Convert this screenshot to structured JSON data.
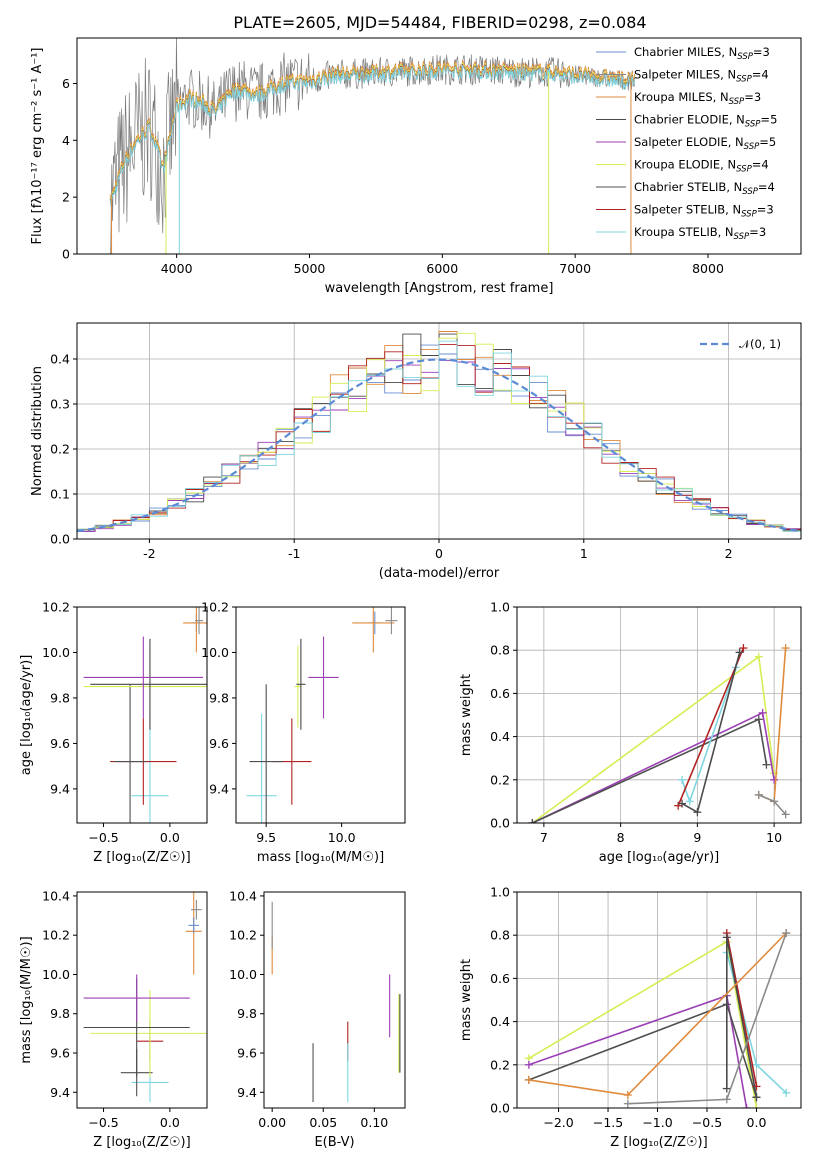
{
  "figure": {
    "title": "PLATE=2605, MJD=54484, FIBERID=0298, z=0.084"
  },
  "series_styles": [
    {
      "name": "Chabrier MILES",
      "nssp": "3",
      "color": "#6a8fd0"
    },
    {
      "name": "Salpeter MILES",
      "nssp": "4",
      "color": "#8a8a8a"
    },
    {
      "name": "Kroupa MILES",
      "nssp": "3",
      "color": "#e08a3c"
    },
    {
      "name": "Chabrier ELODIE",
      "nssp": "5",
      "color": "#4a4a4a"
    },
    {
      "name": "Salpeter ELODIE",
      "nssp": "5",
      "color": "#9b3fb5"
    },
    {
      "name": "Kroupa ELODIE",
      "nssp": "4",
      "color": "#d4ee55"
    },
    {
      "name": "Chabrier STELIB",
      "nssp": "4",
      "color": "#505050"
    },
    {
      "name": "Salpeter STELIB",
      "nssp": "3",
      "color": "#b22222"
    },
    {
      "name": "Kroupa STELIB",
      "nssp": "3",
      "color": "#7fd6e0"
    }
  ],
  "chart_data": [
    {
      "id": "spectrum",
      "type": "line",
      "xlabel": "wavelength [Angstrom, rest frame]",
      "ylabel": "Flux [fλ10⁻¹⁷ erg cm⁻² s⁻¹ A⁻¹]",
      "xlim": [
        3250,
        8700
      ],
      "ylim": [
        0,
        7.6
      ],
      "xticks": [
        4000,
        5000,
        6000,
        7000,
        8000
      ],
      "yticks": [
        0,
        2,
        4,
        6
      ],
      "data_curve": {
        "x": [
          3500,
          3600,
          3700,
          3800,
          3900,
          4000,
          4100,
          4200,
          4300,
          4400,
          4500,
          4600,
          4800,
          5000,
          5200,
          5400,
          5600,
          5800,
          6000,
          6200,
          6400,
          6600,
          6800,
          7000,
          7200,
          7400
        ],
        "y": [
          1.8,
          3.2,
          4.0,
          4.5,
          3.0,
          5.2,
          5.5,
          5.3,
          5.0,
          5.7,
          5.8,
          5.6,
          6.0,
          6.1,
          6.3,
          6.35,
          6.4,
          6.45,
          6.5,
          6.5,
          6.45,
          6.4,
          6.4,
          6.3,
          6.2,
          6.1
        ]
      },
      "legend": "upper right"
    },
    {
      "id": "residuals",
      "type": "histogram",
      "xlabel": "(data-model)/error",
      "ylabel": "Normed distribution",
      "xlim": [
        -2.5,
        2.5
      ],
      "ylim": [
        0,
        0.48
      ],
      "xticks": [
        -2,
        -1,
        0,
        1,
        2
      ],
      "yticks": [
        0.0,
        0.1,
        0.2,
        0.3,
        0.4
      ],
      "reference": {
        "name": "𝒩(0, 1)",
        "mean": 0,
        "sigma": 1
      },
      "grid": true
    },
    {
      "id": "z-age",
      "type": "errorbar",
      "xlabel": "Z [log₁₀(Z/Z☉)]",
      "ylabel": "age  [log₁₀(age/yr)]",
      "xlim": [
        -0.7,
        0.28
      ],
      "ylim": [
        9.25,
        10.2
      ],
      "xticks": [
        -0.5,
        0.0
      ],
      "yticks": [
        9.4,
        9.6,
        9.8,
        10.0,
        10.2
      ],
      "points": [
        {
          "series": 8,
          "x": -0.15,
          "y": 9.37,
          "xerr": 0.14,
          "yerr": 0.36
        },
        {
          "series": 7,
          "x": -0.2,
          "y": 9.52,
          "xerr": 0.25,
          "yerr": 0.19
        },
        {
          "series": 6,
          "x": -0.3,
          "y": 9.52,
          "xerr": 0.12,
          "yerr": 0.34
        },
        {
          "series": 5,
          "x": -0.15,
          "y": 9.85,
          "xerr": 0.5,
          "yerr": 0.18
        },
        {
          "series": 3,
          "x": -0.15,
          "y": 9.86,
          "xerr": 0.45,
          "yerr": 0.2
        },
        {
          "series": 4,
          "x": -0.2,
          "y": 9.89,
          "xerr": 0.45,
          "yerr": 0.18
        },
        {
          "series": 0,
          "x": 0.2,
          "y": 10.13,
          "xerr": 0.04,
          "yerr": 0.04
        },
        {
          "series": 2,
          "x": 0.2,
          "y": 10.13,
          "xerr": 0.1,
          "yerr": 0.13
        },
        {
          "series": 1,
          "x": 0.22,
          "y": 10.14,
          "xerr": 0.03,
          "yerr": 0.06
        }
      ]
    },
    {
      "id": "mass-age",
      "type": "errorbar",
      "xlabel": "mass [log₁₀(M/M☉)]",
      "ylabel": "",
      "xlim": [
        9.3,
        10.42
      ],
      "ylim": [
        9.25,
        10.2
      ],
      "xticks": [
        9.5,
        10.0
      ],
      "yticks": [
        9.4,
        9.6,
        9.8,
        10.0,
        10.2
      ],
      "points": [
        {
          "series": 8,
          "x": 9.47,
          "y": 9.37,
          "xerr": 0.1,
          "yerr": 0.36
        },
        {
          "series": 7,
          "x": 9.67,
          "y": 9.52,
          "xerr": 0.13,
          "yerr": 0.19
        },
        {
          "series": 6,
          "x": 9.5,
          "y": 9.52,
          "xerr": 0.11,
          "yerr": 0.34
        },
        {
          "series": 5,
          "x": 9.71,
          "y": 9.85,
          "xerr": 0.02,
          "yerr": 0.18
        },
        {
          "series": 3,
          "x": 9.73,
          "y": 9.86,
          "xerr": 0.03,
          "yerr": 0.2
        },
        {
          "series": 4,
          "x": 9.88,
          "y": 9.89,
          "xerr": 0.1,
          "yerr": 0.18
        },
        {
          "series": 0,
          "x": 10.22,
          "y": 10.13,
          "xerr": 0.04,
          "yerr": 0.05
        },
        {
          "series": 2,
          "x": 10.21,
          "y": 10.13,
          "xerr": 0.14,
          "yerr": 0.13
        },
        {
          "series": 1,
          "x": 10.33,
          "y": 10.14,
          "xerr": 0.04,
          "yerr": 0.06
        }
      ]
    },
    {
      "id": "age-weight",
      "type": "line",
      "xlabel": "age  [log₁₀(age/yr)]",
      "ylabel": "mass weight",
      "xlim": [
        6.65,
        10.35
      ],
      "ylim": [
        0,
        1.0
      ],
      "xticks": [
        7,
        8,
        9,
        10
      ],
      "yticks": [
        0.0,
        0.2,
        0.4,
        0.6,
        0.8,
        1.0
      ],
      "grid": true,
      "series": [
        {
          "series": 5,
          "x": [
            6.85,
            9.8,
            10.0
          ],
          "y": [
            0.0,
            0.77,
            0.23
          ]
        },
        {
          "series": 4,
          "x": [
            6.85,
            9.85,
            10.0
          ],
          "y": [
            0.0,
            0.51,
            0.2
          ]
        },
        {
          "series": 6,
          "x": [
            6.85,
            9.8,
            9.9
          ],
          "y": [
            0.0,
            0.48,
            0.27
          ]
        },
        {
          "series": 8,
          "x": [
            8.8,
            8.9,
            9.5
          ],
          "y": [
            0.2,
            0.1,
            0.72
          ]
        },
        {
          "series": 7,
          "x": [
            8.75,
            9.6
          ],
          "y": [
            0.08,
            0.81
          ]
        },
        {
          "series": 3,
          "x": [
            8.8,
            9.0,
            9.55
          ],
          "y": [
            0.09,
            0.05,
            0.79
          ]
        },
        {
          "series": 2,
          "x": [
            9.8,
            10.0,
            10.15
          ],
          "y": [
            0.13,
            0.1,
            0.81
          ]
        },
        {
          "series": 1,
          "x": [
            9.8,
            10.0,
            10.15
          ],
          "y": [
            0.13,
            0.1,
            0.04
          ]
        }
      ]
    },
    {
      "id": "z-mass",
      "type": "errorbar",
      "xlabel": "Z [log₁₀(Z/Z☉)]",
      "ylabel": "mass [log₁₀(M/M☉)]",
      "xlim": [
        -0.7,
        0.28
      ],
      "ylim": [
        9.32,
        10.42
      ],
      "xticks": [
        -0.5,
        0.0
      ],
      "yticks": [
        9.4,
        9.6,
        9.8,
        10.0,
        10.2,
        10.4
      ],
      "points": [
        {
          "series": 8,
          "x": -0.15,
          "y": 9.45,
          "xerr": 0.14,
          "yerr": 0.1
        },
        {
          "series": 6,
          "x": -0.25,
          "y": 9.5,
          "xerr": 0.12,
          "yerr": 0.12
        },
        {
          "series": 7,
          "x": -0.15,
          "y": 9.66,
          "xerr": 0.1,
          "yerr": 0.1
        },
        {
          "series": 5,
          "x": -0.15,
          "y": 9.7,
          "xerr": 0.45,
          "yerr": 0.22
        },
        {
          "series": 3,
          "x": -0.25,
          "y": 9.73,
          "xerr": 0.4,
          "yerr": 0.25
        },
        {
          "series": 4,
          "x": -0.25,
          "y": 9.88,
          "xerr": 0.4,
          "yerr": 0.12
        },
        {
          "series": 2,
          "x": 0.18,
          "y": 10.22,
          "xerr": 0.06,
          "yerr": 0.22
        },
        {
          "series": 0,
          "x": 0.18,
          "y": 10.25,
          "xerr": 0.04,
          "yerr": 0.04
        },
        {
          "series": 1,
          "x": 0.2,
          "y": 10.33,
          "xerr": 0.04,
          "yerr": 0.05
        }
      ]
    },
    {
      "id": "ebv-mass",
      "type": "errorbar",
      "xlabel": "E(B-V)",
      "ylabel": "",
      "xlim": [
        -0.008,
        0.13
      ],
      "ylim": [
        9.32,
        10.42
      ],
      "xticks": [
        0.0,
        0.05,
        0.1
      ],
      "yticks": [
        9.4,
        9.6,
        9.8,
        10.0,
        10.2,
        10.4
      ],
      "points": [
        {
          "series": 6,
          "x": 0.04,
          "y": 9.5,
          "xerr": 0.0,
          "yerr": 0.15
        },
        {
          "series": 7,
          "x": 0.074,
          "y": 9.66,
          "xerr": 0.0,
          "yerr": 0.1
        },
        {
          "series": 8,
          "x": 0.074,
          "y": 9.5,
          "xerr": 0.0,
          "yerr": 0.15
        },
        {
          "series": 4,
          "x": 0.115,
          "y": 9.84,
          "xerr": 0.0,
          "yerr": 0.16
        },
        {
          "series": 5,
          "x": 0.124,
          "y": 9.7,
          "xerr": 0.0,
          "yerr": 0.2
        },
        {
          "series": 3,
          "x": 0.125,
          "y": 9.7,
          "xerr": 0.0,
          "yerr": 0.2
        },
        {
          "series": 2,
          "x": 0.0,
          "y": 10.1,
          "xerr": 0.0,
          "yerr": 0.1
        },
        {
          "series": 1,
          "x": 0.0,
          "y": 10.25,
          "xerr": 0.0,
          "yerr": 0.12
        }
      ]
    },
    {
      "id": "z-weight",
      "type": "line",
      "xlabel": "Z [log₁₀(Z/Z☉)]",
      "ylabel": "mass weight",
      "xlim": [
        -2.42,
        0.45
      ],
      "ylim": [
        0,
        1.0
      ],
      "xticks": [
        -2.0,
        -1.5,
        -1.0,
        -0.5,
        0.0
      ],
      "yticks": [
        0.0,
        0.2,
        0.4,
        0.6,
        0.8,
        1.0
      ],
      "grid": true,
      "series": [
        {
          "series": 5,
          "x": [
            -2.3,
            -0.3,
            0.0
          ],
          "y": [
            0.23,
            0.77,
            0.0
          ]
        },
        {
          "series": 4,
          "x": [
            -2.3,
            -0.3,
            -0.1
          ],
          "y": [
            0.2,
            0.52,
            0.0
          ]
        },
        {
          "series": 6,
          "x": [
            -2.3,
            -0.3,
            0.0
          ],
          "y": [
            0.13,
            0.48,
            0.05
          ]
        },
        {
          "series": 8,
          "x": [
            -0.3,
            0.0,
            0.3
          ],
          "y": [
            0.72,
            0.2,
            0.07
          ]
        },
        {
          "series": 7,
          "x": [
            -0.3,
            0.0
          ],
          "y": [
            0.81,
            0.1
          ]
        },
        {
          "series": 3,
          "x": [
            -0.3,
            -0.3,
            0.0
          ],
          "y": [
            0.09,
            0.79,
            0.05
          ]
        },
        {
          "series": 2,
          "x": [
            -2.3,
            -1.3,
            0.3
          ],
          "y": [
            0.13,
            0.06,
            0.81
          ]
        },
        {
          "series": 1,
          "x": [
            -1.3,
            -0.3,
            0.3
          ],
          "y": [
            0.02,
            0.04,
            0.81
          ]
        }
      ]
    }
  ]
}
